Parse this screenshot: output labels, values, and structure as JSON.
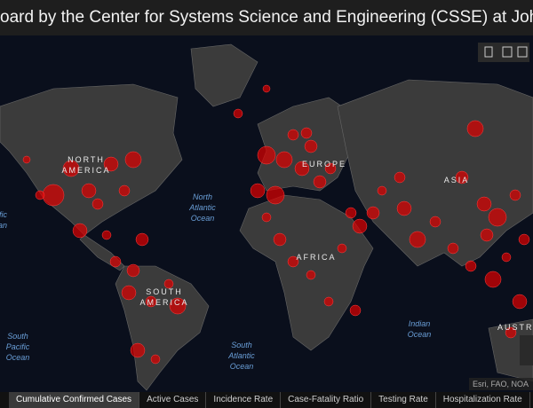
{
  "header": {
    "title": "oard by the Center for Systems Science and Engineering (CSSE) at Johns H"
  },
  "map": {
    "labels": [
      {
        "kind": "land",
        "lines": [
          "NORTH",
          "AMERICA"
        ]
      },
      {
        "kind": "ocean",
        "lines": [
          "North",
          "Atlantic",
          "Ocean"
        ]
      },
      {
        "kind": "land",
        "lines": [
          "EUROPE"
        ]
      },
      {
        "kind": "land",
        "lines": [
          "ASIA"
        ]
      },
      {
        "kind": "land",
        "lines": [
          "AFRICA"
        ]
      },
      {
        "kind": "land",
        "lines": [
          "SOUTH",
          "AMERICA"
        ]
      },
      {
        "kind": "ocean",
        "lines": [
          "Indian",
          "Ocean"
        ]
      },
      {
        "kind": "ocean",
        "lines": [
          "South",
          "Pacific",
          "Ocean"
        ]
      },
      {
        "kind": "ocean",
        "lines": [
          "South",
          "Atlantic",
          "Ocean"
        ]
      },
      {
        "kind": "ocean",
        "lines": [
          "acific",
          "ean"
        ]
      },
      {
        "kind": "land",
        "lines": [
          "AUSTR"
        ]
      }
    ],
    "attribution": "Esri, FAO, NOA"
  },
  "tabs": [
    "Cumulative Confirmed Cases",
    "Active Cases",
    "Incidence Rate",
    "Case-Fatality Ratio",
    "Testing Rate",
    "Hospitalization Rate"
  ]
}
